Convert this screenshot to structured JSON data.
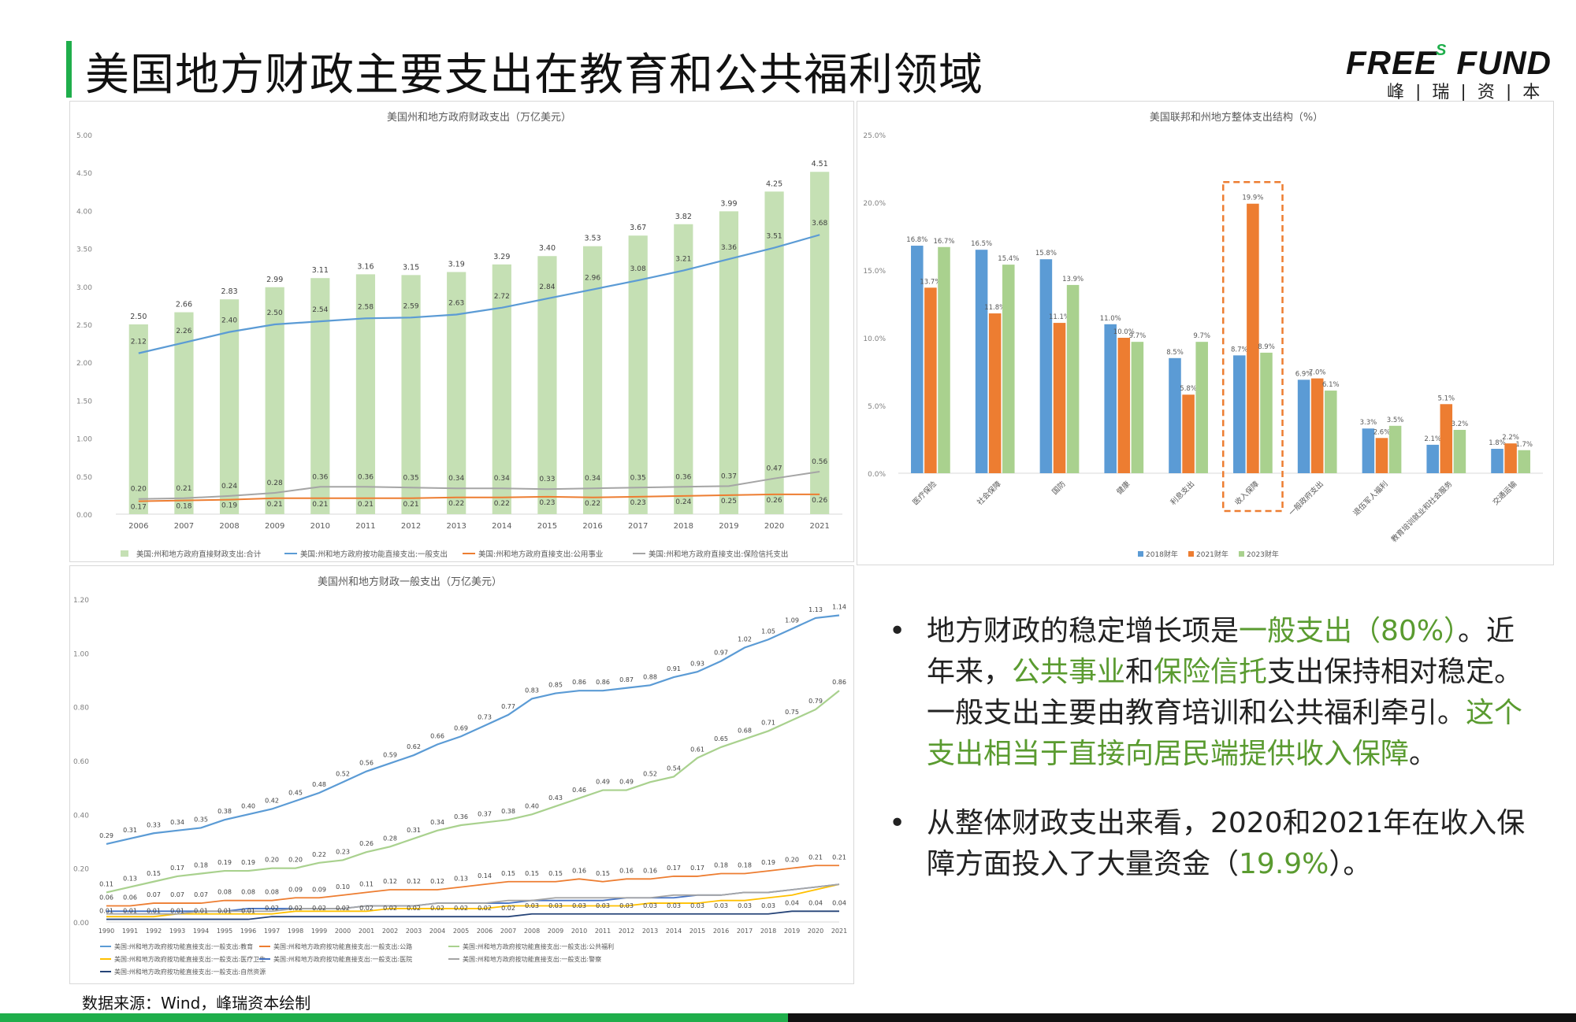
{
  "title": "美国地方财政主要支出在教育和公共福利领域",
  "logo": {
    "en_left": "FREE",
    "en_s": "S",
    "en_right": "FUND",
    "cn": "峰|瑞|资|本"
  },
  "colors": {
    "green_bar": "#c5e0b4",
    "blue": "#5b9bd5",
    "orange": "#ed7d31",
    "gray": "#a5a5a5",
    "yellow": "#ffc000",
    "lightgreen": "#a9d18e",
    "navy": "#264478",
    "accent": "#1fae4b"
  },
  "chart_data": [
    {
      "type": "bar",
      "title": "美国州和地方政府财政支出（万亿美元）",
      "categories": [
        "2006",
        "2007",
        "2008",
        "2009",
        "2010",
        "2011",
        "2012",
        "2013",
        "2014",
        "2015",
        "2016",
        "2017",
        "2018",
        "2019",
        "2020",
        "2021"
      ],
      "ylim": [
        0,
        5
      ],
      "yticks": [
        "0.00",
        "0.50",
        "1.00",
        "1.50",
        "2.00",
        "2.50",
        "3.00",
        "3.50",
        "4.00",
        "4.50",
        "5.00"
      ],
      "legend_position": "bottom",
      "series": [
        {
          "name": "美国:州和地方政府直接财政支出:合计",
          "type": "bar",
          "values": [
            2.5,
            2.66,
            2.83,
            2.99,
            3.11,
            3.16,
            3.15,
            3.19,
            3.29,
            3.4,
            3.53,
            3.67,
            3.82,
            3.99,
            4.25,
            4.51
          ]
        },
        {
          "name": "美国:州和地方政府按功能直接支出:一般支出",
          "type": "line",
          "values": [
            2.12,
            2.26,
            2.4,
            2.5,
            2.54,
            2.58,
            2.59,
            2.63,
            2.72,
            2.84,
            2.96,
            3.08,
            3.21,
            3.36,
            3.51,
            3.68
          ]
        },
        {
          "name": "美国:州和地方政府直接支出:公用事业",
          "type": "line",
          "values": [
            0.17,
            0.18,
            0.19,
            0.21,
            0.21,
            0.21,
            0.21,
            0.22,
            0.22,
            0.23,
            0.22,
            0.23,
            0.24,
            0.25,
            0.26,
            0.26
          ]
        },
        {
          "name": "美国:州和地方政府直接支出:保险信托支出",
          "type": "line",
          "values": [
            0.2,
            0.21,
            0.24,
            0.28,
            0.36,
            0.36,
            0.35,
            0.34,
            0.34,
            0.33,
            0.34,
            0.35,
            0.36,
            0.37,
            0.47,
            0.56
          ]
        }
      ]
    },
    {
      "type": "bar",
      "title": "美国联邦和州地方整体支出结构（%）",
      "categories": [
        "医疗保险",
        "社会保障",
        "国防",
        "健康",
        "利息支出",
        "收入保障",
        "一般政府支出",
        "退伍军人福利",
        "教育培训就业和社会服务",
        "交通运输"
      ],
      "ylim": [
        0,
        25
      ],
      "yticks": [
        "0.0%",
        "5.0%",
        "10.0%",
        "15.0%",
        "20.0%",
        "25.0%"
      ],
      "legend_position": "bottom",
      "highlight_category": "收入保障",
      "series": [
        {
          "name": "2018财年",
          "values": [
            16.8,
            16.5,
            15.8,
            11.0,
            8.5,
            8.7,
            6.9,
            3.3,
            2.1,
            1.8
          ]
        },
        {
          "name": "2021财年",
          "values": [
            13.7,
            11.8,
            11.1,
            10.0,
            5.8,
            19.9,
            7.0,
            2.6,
            5.1,
            2.2
          ]
        },
        {
          "name": "2023财年",
          "values": [
            16.7,
            15.4,
            13.9,
            9.7,
            9.7,
            8.9,
            6.1,
            3.5,
            3.2,
            1.7
          ]
        }
      ]
    },
    {
      "type": "line",
      "title": "美国州和地方财政一般支出（万亿美元）",
      "x": [
        "1990",
        "1991",
        "1992",
        "1993",
        "1994",
        "1995",
        "1996",
        "1997",
        "1998",
        "1999",
        "2000",
        "2001",
        "2002",
        "2003",
        "2004",
        "2005",
        "2006",
        "2007",
        "2008",
        "2009",
        "2010",
        "2011",
        "2012",
        "2013",
        "2014",
        "2015",
        "2016",
        "2017",
        "2018",
        "2019",
        "2020",
        "2021"
      ],
      "ylim": [
        0,
        1.2
      ],
      "yticks": [
        "0.00",
        "0.20",
        "0.40",
        "0.60",
        "0.80",
        "1.00",
        "1.20"
      ],
      "legend_position": "bottom",
      "series": [
        {
          "name": "美国:州和地方政府按功能直接支出:一般支出:教育",
          "values": [
            0.29,
            0.31,
            0.33,
            0.34,
            0.35,
            0.38,
            0.4,
            0.42,
            0.45,
            0.48,
            0.52,
            0.56,
            0.59,
            0.62,
            0.66,
            0.69,
            0.73,
            0.77,
            0.83,
            0.85,
            0.86,
            0.86,
            0.87,
            0.88,
            0.91,
            0.93,
            0.97,
            1.02,
            1.05,
            1.09,
            1.13,
            1.14
          ]
        },
        {
          "name": "美国:州和地方政府按功能直接支出:一般支出:公路",
          "values": [
            0.06,
            0.06,
            0.07,
            0.07,
            0.07,
            0.08,
            0.08,
            0.08,
            0.09,
            0.09,
            0.1,
            0.11,
            0.12,
            0.12,
            0.12,
            0.13,
            0.14,
            0.15,
            0.15,
            0.15,
            0.16,
            0.15,
            0.16,
            0.16,
            0.17,
            0.17,
            0.18,
            0.18,
            0.19,
            0.2,
            0.21,
            0.21
          ]
        },
        {
          "name": "美国:州和地方政府按功能直接支出:一般支出:公共福利",
          "values": [
            0.11,
            0.13,
            0.15,
            0.17,
            0.18,
            0.19,
            0.19,
            0.2,
            0.2,
            0.22,
            0.23,
            0.26,
            0.28,
            0.31,
            0.34,
            0.36,
            0.37,
            0.38,
            0.4,
            0.43,
            0.46,
            0.49,
            0.49,
            0.52,
            0.54,
            0.61,
            0.65,
            0.68,
            0.71,
            0.75,
            0.79,
            0.86
          ]
        },
        {
          "name": "美国:州和地方政府按功能直接支出:一般支出:医疗卫生",
          "values": [
            0.02,
            0.02,
            0.02,
            0.03,
            0.03,
            0.03,
            0.03,
            0.03,
            0.04,
            0.04,
            0.04,
            0.04,
            0.05,
            0.05,
            0.05,
            0.05,
            0.05,
            0.06,
            0.06,
            0.06,
            0.06,
            0.06,
            0.06,
            0.07,
            0.07,
            0.07,
            0.08,
            0.08,
            0.09,
            0.1,
            0.12,
            0.14
          ]
        },
        {
          "name": "美国:州和地方政府按功能直接支出:一般支出:医院",
          "values": [
            0.04,
            0.04,
            0.04,
            0.04,
            0.04,
            0.04,
            0.05,
            0.05,
            0.05,
            0.05,
            0.05,
            0.06,
            0.06,
            0.06,
            0.07,
            0.07,
            0.07,
            0.07,
            0.08,
            0.08,
            0.08,
            0.08,
            0.09,
            0.09,
            0.09,
            0.1,
            0.1,
            0.11,
            0.11,
            0.12,
            0.13,
            0.14
          ]
        },
        {
          "name": "美国:州和地方政府按功能直接支出:一般支出:警察",
          "values": [
            0.03,
            0.03,
            0.03,
            0.03,
            0.04,
            0.04,
            0.04,
            0.04,
            0.05,
            0.05,
            0.05,
            0.06,
            0.06,
            0.06,
            0.07,
            0.07,
            0.07,
            0.08,
            0.08,
            0.09,
            0.09,
            0.09,
            0.09,
            0.09,
            0.1,
            0.1,
            0.1,
            0.11,
            0.11,
            0.12,
            0.13,
            0.14
          ]
        },
        {
          "name": "美国:州和地方政府按功能直接支出:一般支出:自然资源",
          "values": [
            0.01,
            0.01,
            0.01,
            0.01,
            0.01,
            0.01,
            0.01,
            0.02,
            0.02,
            0.02,
            0.02,
            0.02,
            0.02,
            0.02,
            0.02,
            0.02,
            0.02,
            0.02,
            0.03,
            0.03,
            0.03,
            0.03,
            0.03,
            0.03,
            0.03,
            0.03,
            0.03,
            0.03,
            0.03,
            0.04,
            0.04,
            0.04
          ]
        }
      ]
    }
  ],
  "bullets": [
    {
      "parts": [
        {
          "t": "地方财政的稳定增长项是",
          "g": false
        },
        {
          "t": "一般支出（80%）",
          "g": true
        },
        {
          "t": "。近年来，",
          "g": false
        },
        {
          "t": "公共事业",
          "g": true
        },
        {
          "t": "和",
          "g": false
        },
        {
          "t": "保险信托",
          "g": true
        },
        {
          "t": "支出保持相对稳定。一般支出主要由教育培训和公共福利牵引。",
          "g": false
        },
        {
          "t": "这个支出相当于直接向居民端提供收入保障",
          "g": true
        },
        {
          "t": "。",
          "g": false
        }
      ]
    },
    {
      "parts": [
        {
          "t": "从整体财政支出来看，2020和2021年在收入保障方面投入了大量资金（",
          "g": false
        },
        {
          "t": "19.9%",
          "g": true
        },
        {
          "t": "）。",
          "g": false
        }
      ]
    }
  ],
  "bullet_symbol": "•",
  "source": "数据来源：Wind，峰瑞资本绘制"
}
